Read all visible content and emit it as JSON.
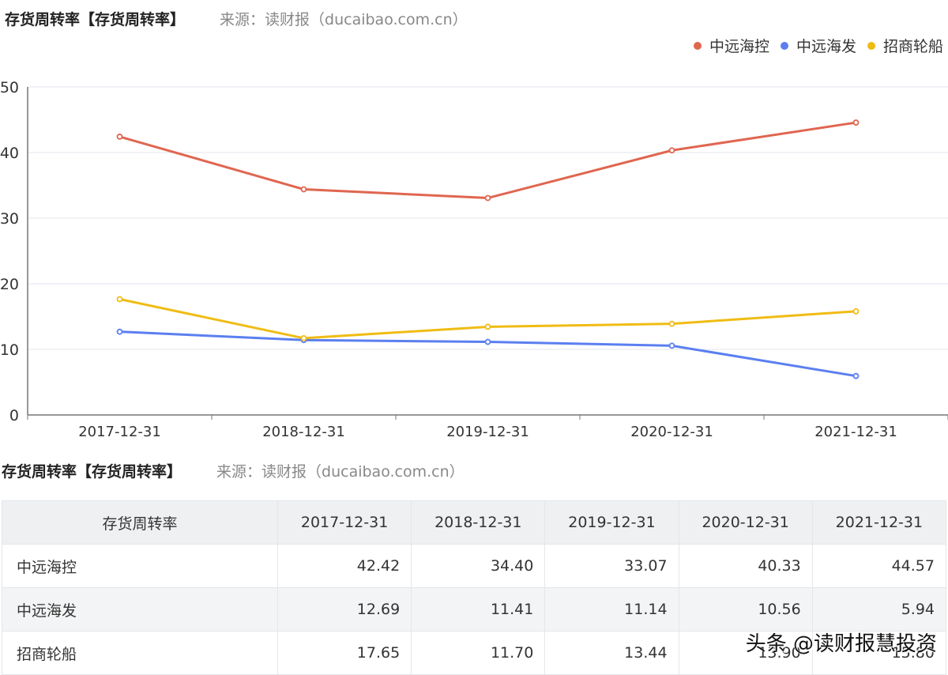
{
  "chart_header": {
    "title": "存货周转率【存货周转率】",
    "source": "来源：读财报（ducaibao.com.cn）"
  },
  "legend": [
    {
      "label": "中远海控",
      "color": "#e06650"
    },
    {
      "label": "中远海发",
      "color": "#5b7ff0"
    },
    {
      "label": "招商轮船",
      "color": "#f0bc14"
    }
  ],
  "chart_data": {
    "type": "line",
    "title": "存货周转率【存货周转率】",
    "xlabel": "",
    "ylabel": "",
    "categories": [
      "2017-12-31",
      "2018-12-31",
      "2019-12-31",
      "2020-12-31",
      "2021-12-31"
    ],
    "series": [
      {
        "name": "中远海控",
        "color": "#e06650",
        "values": [
          42.42,
          34.4,
          33.07,
          40.33,
          44.57
        ]
      },
      {
        "name": "中远海发",
        "color": "#5b7ff0",
        "values": [
          12.69,
          11.41,
          11.14,
          10.56,
          5.94
        ]
      },
      {
        "name": "招商轮船",
        "color": "#f0bc14",
        "values": [
          17.65,
          11.7,
          13.44,
          13.9,
          15.8
        ]
      }
    ],
    "yticks": [
      "0",
      "10",
      "20",
      "30",
      "40",
      "50"
    ],
    "ylim": [
      0,
      50
    ],
    "grid": true,
    "legend_position": "top-right"
  },
  "table_header": {
    "title": "存货周转率【存货周转率】",
    "source": "来源：读财报（ducaibao.com.cn）"
  },
  "table": {
    "columns": [
      "存货周转率",
      "2017-12-31",
      "2018-12-31",
      "2019-12-31",
      "2020-12-31",
      "2021-12-31"
    ],
    "rows": [
      {
        "name": "中远海控",
        "values": [
          "42.42",
          "34.40",
          "33.07",
          "40.33",
          "44.57"
        ]
      },
      {
        "name": "中远海发",
        "values": [
          "12.69",
          "11.41",
          "11.14",
          "10.56",
          "5.94"
        ]
      },
      {
        "name": "招商轮船",
        "values": [
          "17.65",
          "11.70",
          "13.44",
          "13.90",
          "15.80"
        ]
      }
    ]
  },
  "watermark": "头条 @读财报慧投资"
}
